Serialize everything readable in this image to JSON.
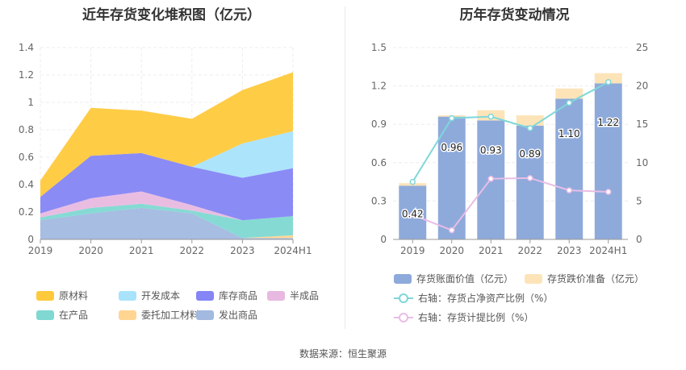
{
  "left_title": "近年存货变化堆积图（亿元）",
  "right_title": "历年存货变动情况",
  "source": "数据来源：恒生聚源",
  "colors": {
    "raw_materials": "#ffc93c",
    "dev_cost": "#a8e3fb",
    "inventory_goods": "#8585f5",
    "semi_finished": "#e8b9e0",
    "in_production": "#7fd8d2",
    "consigned_materials": "#ffd591",
    "shipped_goods": "#a2b9e0",
    "book_value": "#8eaadb",
    "impairment": "#fde4b8",
    "ratio_line": "#7fd7d9",
    "provision_line": "#e9bde6"
  },
  "chart_data": [
    {
      "type": "area",
      "stacked": true,
      "title": "近年存货变化堆积图（亿元）",
      "categories": [
        "2019",
        "2020",
        "2021",
        "2022",
        "2023",
        "2024H1"
      ],
      "ylim": [
        0,
        1.4
      ],
      "yticks": [
        "0",
        "0.2",
        "0.4",
        "0.6",
        "0.8",
        "1",
        "1.2",
        "1.4"
      ],
      "series": [
        {
          "name": "发出商品",
          "key": "shipped_goods",
          "values": [
            0.14,
            0.19,
            0.23,
            0.19,
            0.01,
            0.01
          ]
        },
        {
          "name": "委托加工材料",
          "key": "consigned_materials",
          "values": [
            0.0,
            0.0,
            0.0,
            0.0,
            0.0,
            0.02
          ]
        },
        {
          "name": "在产品",
          "key": "in_production",
          "values": [
            0.02,
            0.04,
            0.03,
            0.02,
            0.13,
            0.14
          ]
        },
        {
          "name": "半成品",
          "key": "semi_finished",
          "values": [
            0.03,
            0.07,
            0.09,
            0.04,
            0.0,
            0.0
          ]
        },
        {
          "name": "库存商品",
          "key": "inventory_goods",
          "values": [
            0.12,
            0.31,
            0.28,
            0.28,
            0.31,
            0.35
          ]
        },
        {
          "name": "开发成本",
          "key": "dev_cost",
          "values": [
            0.0,
            0.0,
            0.0,
            0.0,
            0.25,
            0.27
          ]
        },
        {
          "name": "原材料",
          "key": "raw_materials",
          "values": [
            0.12,
            0.35,
            0.31,
            0.35,
            0.39,
            0.43
          ]
        }
      ],
      "legend": [
        {
          "name": "原材料",
          "key": "raw_materials"
        },
        {
          "name": "开发成本",
          "key": "dev_cost"
        },
        {
          "name": "库存商品",
          "key": "inventory_goods"
        },
        {
          "name": "半成品",
          "key": "semi_finished"
        },
        {
          "name": "在产品",
          "key": "in_production"
        },
        {
          "name": "委托加工材料",
          "key": "consigned_materials"
        },
        {
          "name": "发出商品",
          "key": "shipped_goods"
        }
      ]
    },
    {
      "type": "bar",
      "stacked": true,
      "title": "历年存货变动情况",
      "categories": [
        "2019",
        "2020",
        "2021",
        "2022",
        "2023",
        "2024H1"
      ],
      "ylim_left": [
        0,
        1.5
      ],
      "yticks_left": [
        "0",
        "0.3",
        "0.6",
        "0.9",
        "1.2",
        "1.5"
      ],
      "ylim_right": [
        0,
        25
      ],
      "yticks_right": [
        "0",
        "5",
        "10",
        "15",
        "20",
        "25"
      ],
      "series": [
        {
          "name": "存货账面价值（亿元）",
          "key": "book_value",
          "axis": "left",
          "values": [
            0.42,
            0.96,
            0.93,
            0.89,
            1.1,
            1.22
          ],
          "labels": [
            "0.42",
            "0.96",
            "0.93",
            "0.89",
            "1.10",
            "1.22"
          ]
        },
        {
          "name": "存货跌价准备（亿元）",
          "key": "impairment",
          "axis": "left",
          "values": [
            0.02,
            0.01,
            0.08,
            0.08,
            0.08,
            0.08
          ]
        },
        {
          "name": "右轴：存货占净资产比例（%）",
          "key": "ratio_line",
          "axis": "right",
          "type": "line",
          "values": [
            7.5,
            15.8,
            16.0,
            14.5,
            17.8,
            20.5
          ]
        },
        {
          "name": "右轴：存货计提比例（%）",
          "key": "provision_line",
          "axis": "right",
          "type": "line",
          "values": [
            3.2,
            1.2,
            7.9,
            8.0,
            6.4,
            6.2
          ]
        }
      ],
      "legend": [
        {
          "name": "存货账面价值（亿元）",
          "key": "book_value",
          "kind": "box"
        },
        {
          "name": "存货跌价准备（亿元）",
          "key": "impairment",
          "kind": "box"
        },
        {
          "name": "右轴：存货占净资产比例（%）",
          "key": "ratio_line",
          "kind": "line"
        },
        {
          "name": "右轴：存货计提比例（%）",
          "key": "provision_line",
          "kind": "line"
        }
      ]
    }
  ]
}
